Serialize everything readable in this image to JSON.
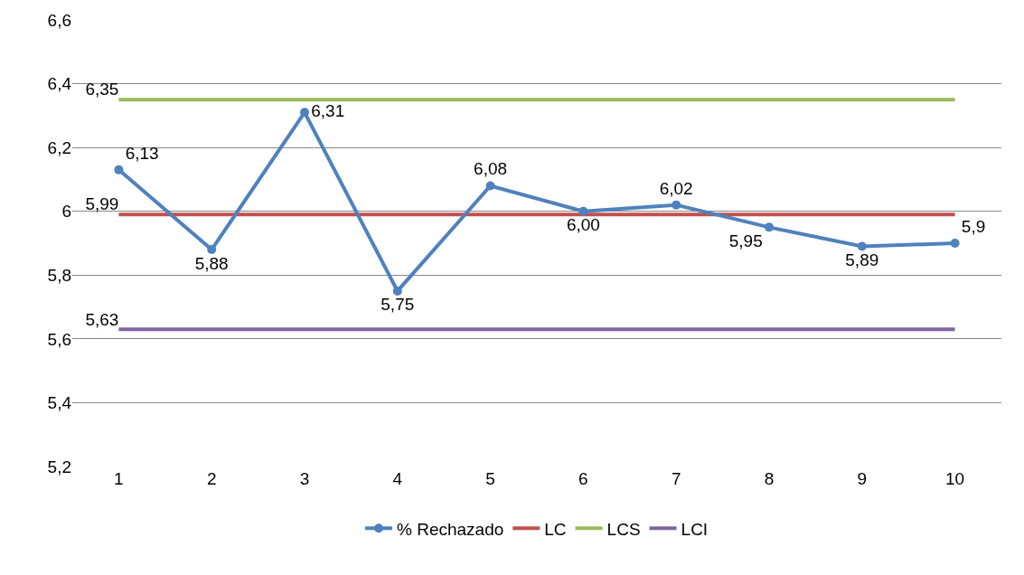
{
  "chart_data": {
    "type": "line",
    "categories": [
      "1",
      "2",
      "3",
      "4",
      "5",
      "6",
      "7",
      "8",
      "9",
      "10"
    ],
    "series": [
      {
        "name": "% Rechazado",
        "color": "#4f81bd",
        "marker": "circle",
        "values": [
          6.13,
          5.88,
          6.31,
          5.75,
          6.08,
          6.0,
          6.02,
          5.95,
          5.89,
          5.9
        ],
        "value_labels": [
          "6,13",
          "5,88",
          "6,31",
          "5,75",
          "6,08",
          "6,00",
          "6,02",
          "5,95",
          "5,89",
          "5,9"
        ]
      },
      {
        "name": "LC",
        "color": "#c0504d",
        "marker": "none",
        "values": [
          5.99,
          5.99,
          5.99,
          5.99,
          5.99,
          5.99,
          5.99,
          5.99,
          5.99,
          5.99
        ],
        "value_labels": [
          "5,99",
          null,
          null,
          null,
          null,
          null,
          null,
          null,
          null,
          null
        ]
      },
      {
        "name": "LCS",
        "color": "#9bbb59",
        "marker": "none",
        "values": [
          6.35,
          6.35,
          6.35,
          6.35,
          6.35,
          6.35,
          6.35,
          6.35,
          6.35,
          6.35
        ],
        "value_labels": [
          "6,35",
          null,
          null,
          null,
          null,
          null,
          null,
          null,
          null,
          null
        ]
      },
      {
        "name": "LCI",
        "color": "#8064a2",
        "marker": "none",
        "values": [
          5.63,
          5.63,
          5.63,
          5.63,
          5.63,
          5.63,
          5.63,
          5.63,
          5.63,
          5.63
        ],
        "value_labels": [
          "5,63",
          null,
          null,
          null,
          null,
          null,
          null,
          null,
          null,
          null
        ]
      }
    ],
    "ylim": [
      5.2,
      6.6
    ],
    "yticks": [
      {
        "value": 5.2,
        "label": "5,2"
      },
      {
        "value": 5.4,
        "label": "5,4"
      },
      {
        "value": 5.6,
        "label": "5,6"
      },
      {
        "value": 5.8,
        "label": "5,8"
      },
      6,
      {
        "value": 6.2,
        "label": "6,2"
      },
      {
        "value": 6.4,
        "label": "6,4"
      },
      {
        "value": 6.6,
        "label": "6,6"
      }
    ],
    "grid": "y",
    "legend": "bottom",
    "line_style": "solid"
  }
}
